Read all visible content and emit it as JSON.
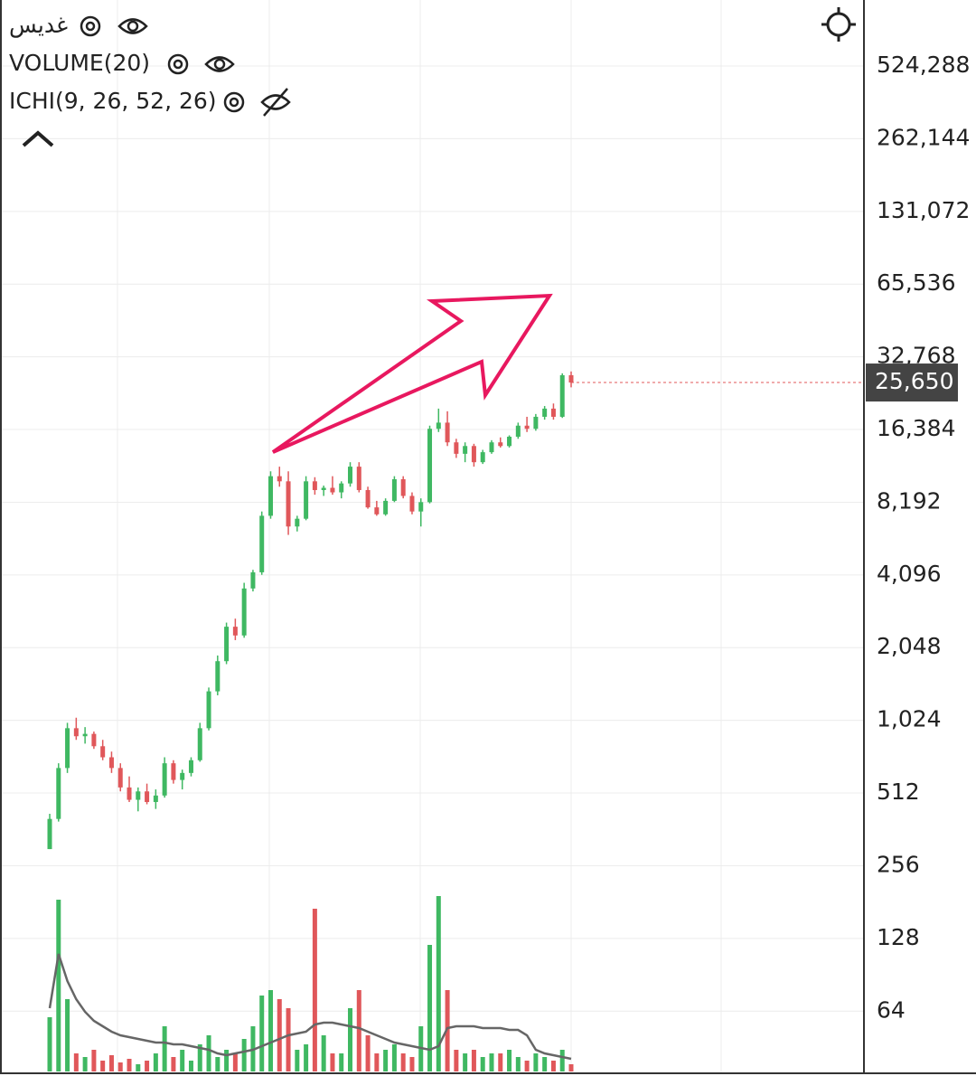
{
  "chart_data": {
    "type": "candlestick",
    "legend": [
      "غدیس",
      "VOLUME(20)",
      "ICHI(9, 26, 52, 26)"
    ],
    "log_scale": true,
    "grid": true,
    "ylim": [
      36,
      984000
    ],
    "yticks": [
      {
        "value": 524288,
        "label": "524,288"
      },
      {
        "value": 262144,
        "label": "262,144"
      },
      {
        "value": 131072,
        "label": "131,072"
      },
      {
        "value": 65536,
        "label": "65,536"
      },
      {
        "value": 32768,
        "label": "32,768"
      },
      {
        "value": 16384,
        "label": "16,384"
      },
      {
        "value": 8192,
        "label": "8,192"
      },
      {
        "value": 4096,
        "label": "4,096"
      },
      {
        "value": 2048,
        "label": "2,048"
      },
      {
        "value": 1024,
        "label": "1,024"
      },
      512,
      256,
      128,
      64
    ],
    "last_price": {
      "value": 25650,
      "label": "25,650"
    },
    "up_color": "#3fb862",
    "down_color": "#e0575a",
    "ohlc": [
      [
        300,
        420,
        300,
        400
      ],
      [
        400,
        680,
        390,
        650
      ],
      [
        650,
        1000,
        620,
        950
      ],
      [
        950,
        1050,
        850,
        880
      ],
      [
        880,
        960,
        820,
        900
      ],
      [
        900,
        920,
        780,
        800
      ],
      [
        800,
        850,
        700,
        720
      ],
      [
        720,
        760,
        620,
        650
      ],
      [
        650,
        680,
        520,
        540
      ],
      [
        540,
        600,
        470,
        480
      ],
      [
        480,
        540,
        430,
        520
      ],
      [
        520,
        560,
        460,
        470
      ],
      [
        470,
        530,
        440,
        500
      ],
      [
        500,
        720,
        490,
        680
      ],
      [
        680,
        700,
        560,
        580
      ],
      [
        580,
        640,
        530,
        620
      ],
      [
        620,
        720,
        600,
        700
      ],
      [
        700,
        1000,
        690,
        950
      ],
      [
        950,
        1400,
        930,
        1350
      ],
      [
        1350,
        1900,
        1300,
        1800
      ],
      [
        1800,
        2600,
        1750,
        2500
      ],
      [
        2500,
        2700,
        2200,
        2300
      ],
      [
        2300,
        3800,
        2250,
        3600
      ],
      [
        3600,
        4300,
        3500,
        4200
      ],
      [
        4200,
        7500,
        4100,
        7200
      ],
      [
        7200,
        11000,
        7000,
        10500
      ],
      [
        10500,
        11500,
        9500,
        10000
      ],
      [
        10000,
        11000,
        6000,
        6500
      ],
      [
        6500,
        7200,
        6200,
        7000
      ],
      [
        7000,
        10500,
        6900,
        10000
      ],
      [
        10000,
        10400,
        8800,
        9200
      ],
      [
        9200,
        9600,
        8700,
        9400
      ],
      [
        9400,
        10500,
        8800,
        9000
      ],
      [
        9000,
        10000,
        8500,
        9800
      ],
      [
        9800,
        12000,
        9500,
        11500
      ],
      [
        11500,
        12000,
        9000,
        9200
      ],
      [
        9200,
        9500,
        7700,
        7800
      ],
      [
        7800,
        8300,
        7200,
        7300
      ],
      [
        7300,
        8500,
        7200,
        8300
      ],
      [
        8300,
        10500,
        8200,
        10200
      ],
      [
        10200,
        10500,
        8500,
        8700
      ],
      [
        8700,
        9000,
        7300,
        7500
      ],
      [
        7500,
        8500,
        6500,
        8200
      ],
      [
        8200,
        17000,
        8100,
        16500
      ],
      [
        16500,
        20000,
        16000,
        17500
      ],
      [
        17500,
        19500,
        14000,
        14500
      ],
      [
        14500,
        15000,
        12500,
        13000
      ],
      [
        13000,
        14500,
        12000,
        14000
      ],
      [
        14000,
        14300,
        11500,
        12000
      ],
      [
        12000,
        13500,
        11800,
        13200
      ],
      [
        13200,
        14800,
        13000,
        14500
      ],
      [
        14500,
        15200,
        13800,
        14000
      ],
      [
        14000,
        15500,
        13800,
        15300
      ],
      [
        15300,
        17500,
        15000,
        17000
      ],
      [
        17000,
        18500,
        16000,
        16500
      ],
      [
        16500,
        19000,
        16200,
        18500
      ],
      [
        18500,
        20500,
        18000,
        20000
      ],
      [
        20000,
        21000,
        18000,
        18500
      ],
      [
        18500,
        28000,
        18300,
        27500
      ],
      [
        27500,
        28500,
        24500,
        25650
      ]
    ],
    "volume_ylim": [
      0,
      100
    ],
    "volume": [
      30,
      95,
      40,
      10,
      8,
      12,
      6,
      9,
      5,
      7,
      4,
      6,
      10,
      25,
      8,
      12,
      6,
      15,
      20,
      8,
      12,
      10,
      18,
      25,
      42,
      45,
      40,
      35,
      12,
      15,
      90,
      20,
      10,
      10,
      35,
      45,
      20,
      10,
      12,
      15,
      10,
      8,
      25,
      70,
      97,
      45,
      12,
      10,
      12,
      8,
      10,
      10,
      12,
      8,
      6,
      10,
      8,
      6,
      12,
      4
    ],
    "volume_ma": [
      35,
      65,
      50,
      40,
      33,
      28,
      25,
      22,
      20,
      19,
      18,
      17,
      16,
      16,
      15,
      15,
      14,
      13,
      12,
      10,
      9,
      10,
      11,
      12,
      14,
      16,
      18,
      20,
      21,
      22,
      26,
      27,
      27,
      26,
      25,
      24,
      22,
      20,
      18,
      16,
      15,
      14,
      13,
      12,
      14,
      24,
      25,
      25,
      25,
      24,
      24,
      24,
      23,
      23,
      20,
      12,
      10,
      9,
      8,
      7
    ],
    "volume_ma_color": "#666666"
  }
}
